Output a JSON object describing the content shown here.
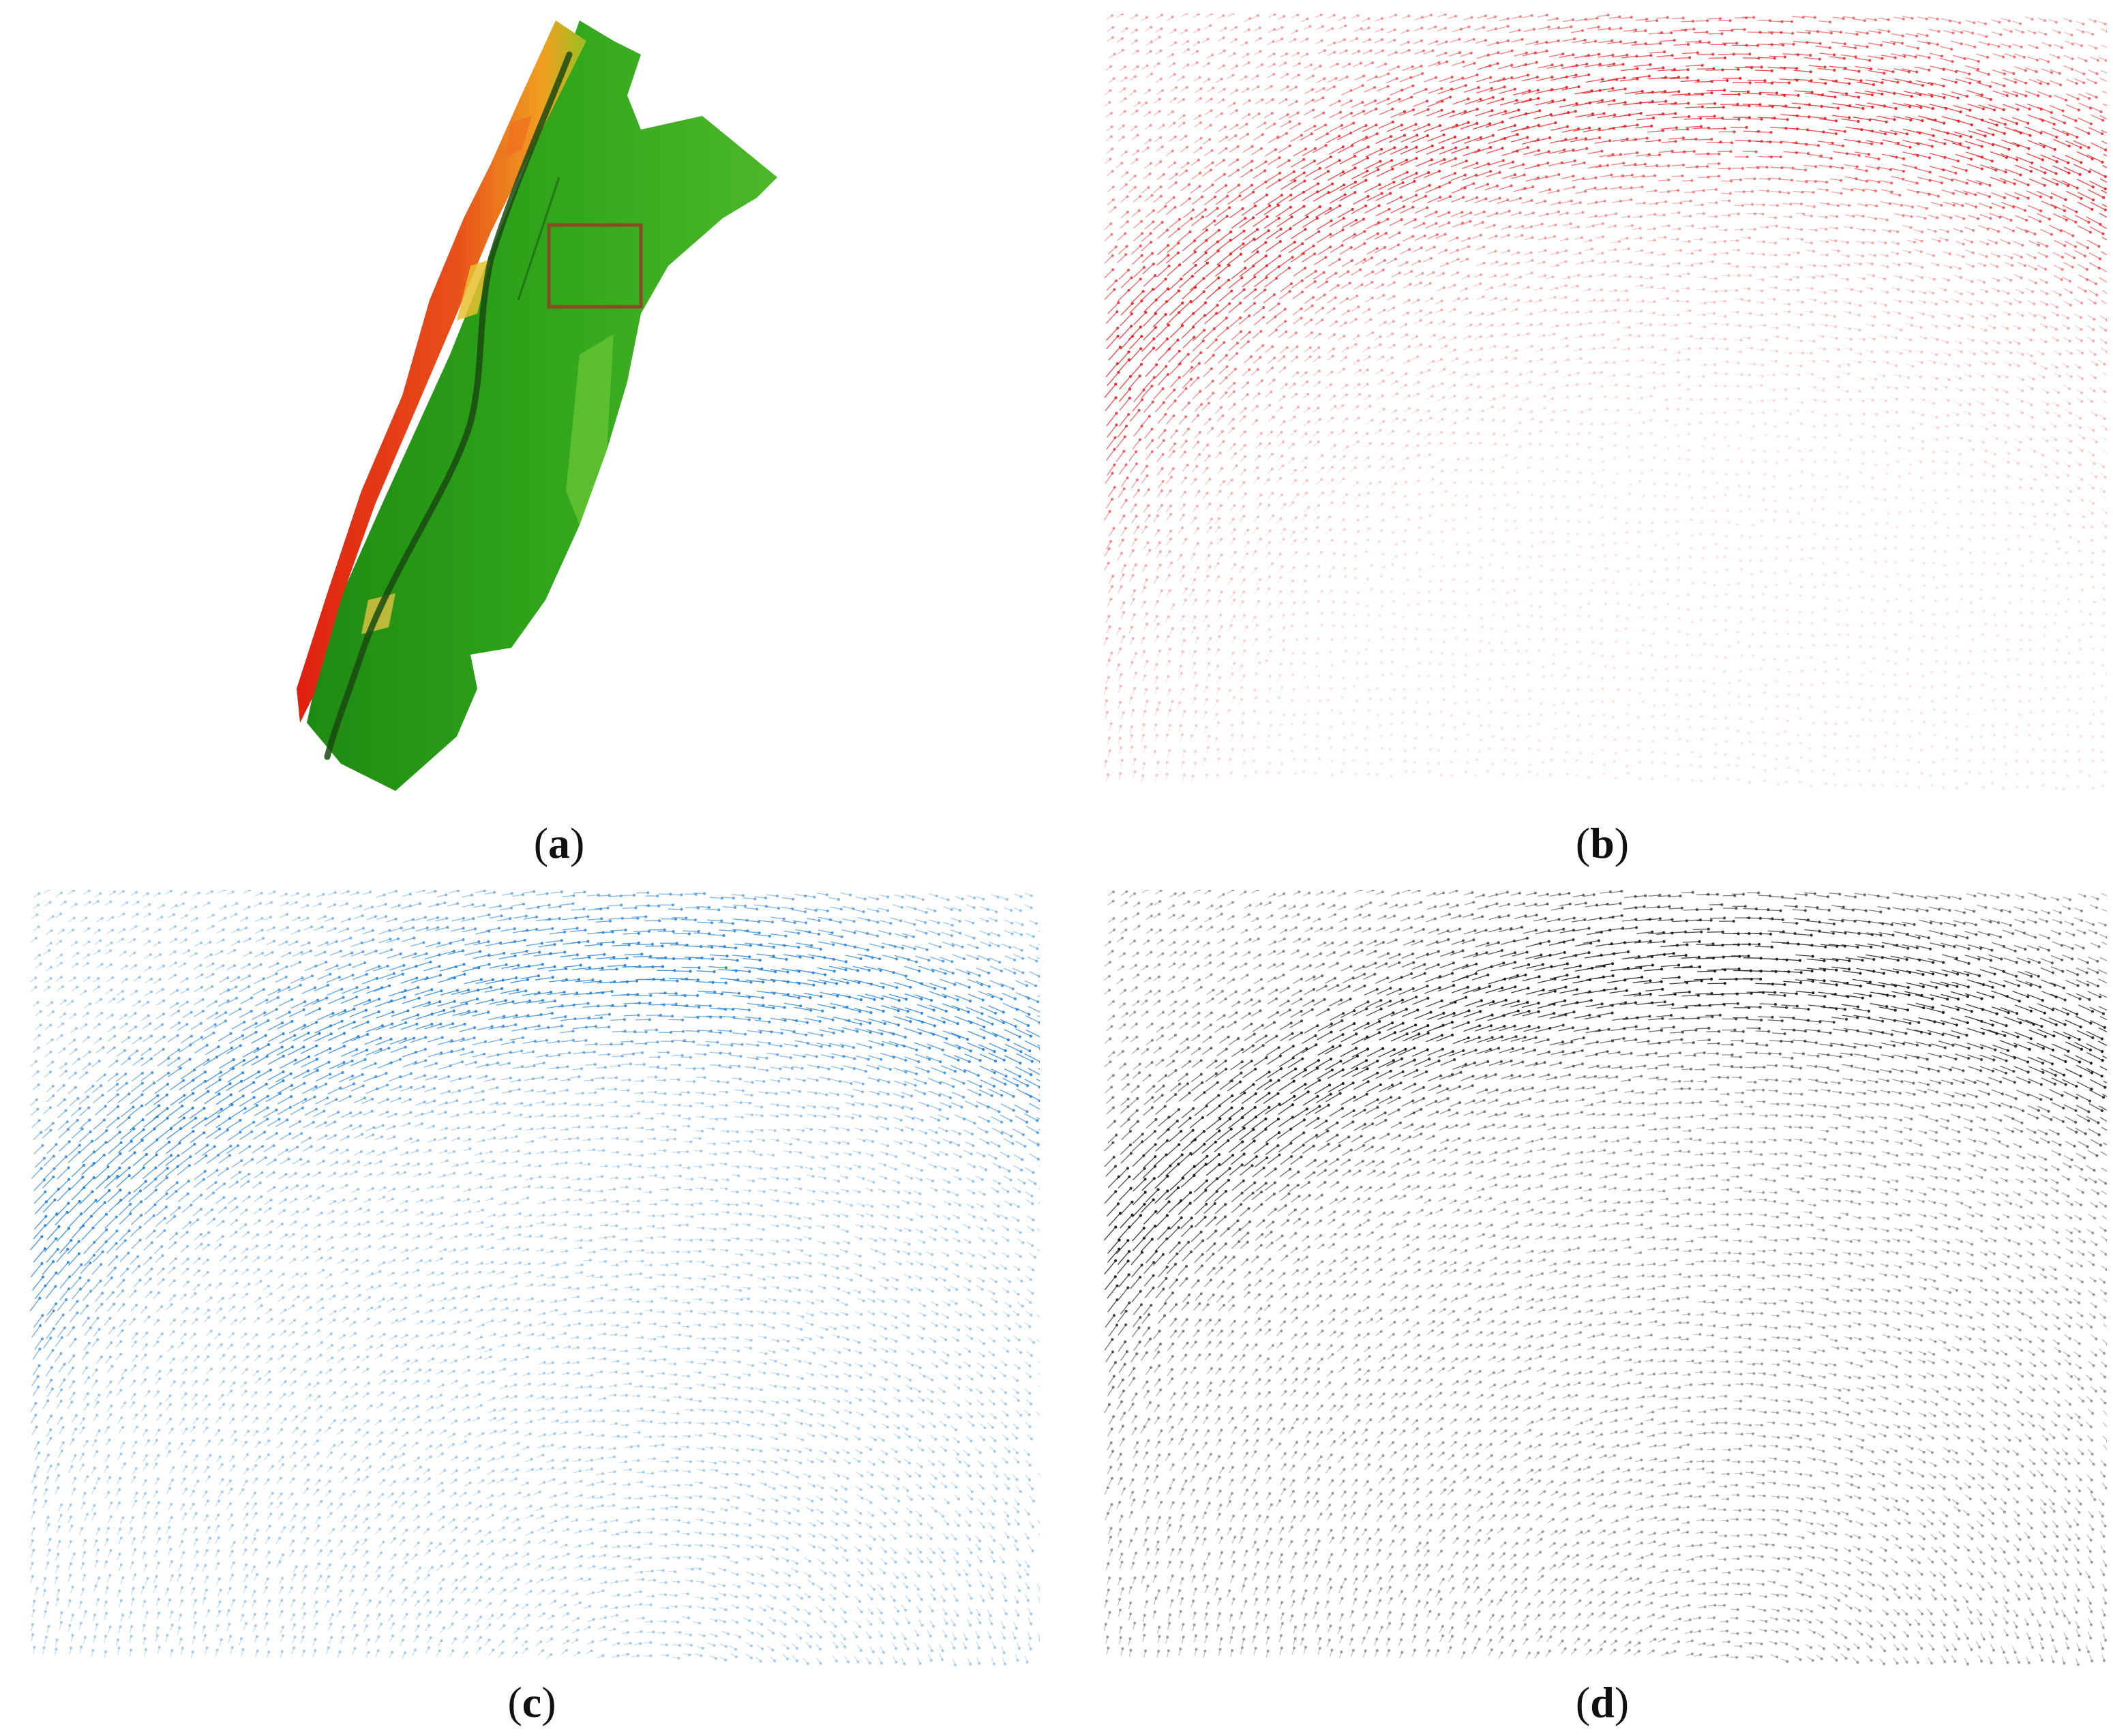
{
  "captions": {
    "a_open": "(",
    "a_letter": "a",
    "a_close": ")",
    "b_open": "(",
    "b_letter": "b",
    "b_close": ")",
    "c_open": "(",
    "c_letter": "c",
    "c_close": ")",
    "d_open": "(",
    "d_letter": "d",
    "d_close": ")"
  },
  "colors": {
    "terrain_high": "#e02010",
    "terrain_mid": "#f0a020",
    "terrain_low": "#2fa51a",
    "channel": "#1a4a12",
    "inset_box": "#8a4a22",
    "vectors_b": "#e8262a",
    "vectors_c": "#2a85d8",
    "vectors_d": "#1a1a1a"
  },
  "panels": {
    "a": {
      "content": "terrain-map",
      "icon": "terrain-map-icon"
    },
    "b": {
      "content": "vector-field",
      "color_key": "vectors_b"
    },
    "c": {
      "content": "vector-field",
      "color_key": "vectors_c"
    },
    "d": {
      "content": "vector-field",
      "color_key": "vectors_d"
    }
  }
}
